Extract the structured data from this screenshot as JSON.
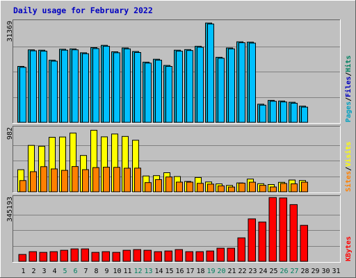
{
  "chart_data": [
    {
      "type": "bar",
      "title": "Daily usage for February 2022",
      "categories": [
        "1",
        "2",
        "3",
        "4",
        "5",
        "6",
        "7",
        "8",
        "9",
        "10",
        "11",
        "12",
        "13",
        "14",
        "15",
        "16",
        "17",
        "18",
        "19",
        "20",
        "21",
        "22",
        "23",
        "24",
        "25",
        "26",
        "27",
        "28",
        "29",
        "30",
        "31"
      ],
      "weekend_days": [
        "5",
        "6",
        "12",
        "13",
        "19",
        "20",
        "26",
        "27"
      ],
      "ymax_label": "31369",
      "ylim": [
        0,
        31369
      ],
      "legend": [
        {
          "label": "Pages",
          "color": "#00a0c0"
        },
        {
          "label": "Files",
          "color": "#0000c0"
        },
        {
          "label": "Hits",
          "color": "#008060"
        }
      ],
      "series": [
        {
          "name": "Hits",
          "color": "#00a0c0",
          "values": [
            17300,
            22400,
            22300,
            19200,
            22600,
            22700,
            21500,
            23100,
            23800,
            21800,
            23000,
            21900,
            18600,
            19500,
            17600,
            22300,
            22500,
            23500,
            30700,
            20100,
            23000,
            24900,
            24800,
            5600,
            6800,
            6600,
            6200,
            5000,
            0,
            0,
            0
          ]
        },
        {
          "name": "Files",
          "color": "#00c0ff",
          "values": [
            17000,
            22100,
            22000,
            18900,
            22300,
            22400,
            21200,
            22800,
            23500,
            21500,
            22700,
            21600,
            18300,
            19200,
            17300,
            22000,
            22200,
            23200,
            30400,
            19800,
            22700,
            24600,
            24500,
            5300,
            6500,
            6300,
            5900,
            4700,
            0,
            0,
            0
          ]
        }
      ]
    },
    {
      "type": "bar",
      "categories": [
        "1",
        "2",
        "3",
        "4",
        "5",
        "6",
        "7",
        "8",
        "9",
        "10",
        "11",
        "12",
        "13",
        "14",
        "15",
        "16",
        "17",
        "18",
        "19",
        "20",
        "21",
        "22",
        "23",
        "24",
        "25",
        "26",
        "27",
        "28",
        "29",
        "30",
        "31"
      ],
      "ymax_label": "982",
      "ylim": [
        0,
        982
      ],
      "legend": [
        {
          "label": "Sites",
          "color": "#ff8000"
        },
        {
          "label": "Visits",
          "color": "#ffff00"
        }
      ],
      "series": [
        {
          "name": "Visits",
          "color": "#ffff00",
          "values": [
            336,
            705,
            693,
            829,
            833,
            893,
            552,
            936,
            835,
            879,
            842,
            784,
            241,
            246,
            290,
            232,
            157,
            217,
            150,
            120,
            97,
            135,
            194,
            124,
            111,
            145,
            180,
            172,
            0,
            0,
            0
          ]
        },
        {
          "name": "Sites",
          "color": "#ff8000",
          "values": [
            171,
            306,
            382,
            348,
            326,
            384,
            337,
            368,
            374,
            372,
            359,
            360,
            140,
            186,
            226,
            148,
            148,
            129,
            117,
            91,
            73,
            132,
            147,
            99,
            74,
            127,
            121,
            147,
            0,
            0,
            0
          ]
        }
      ]
    },
    {
      "type": "bar",
      "categories": [
        "1",
        "2",
        "3",
        "4",
        "5",
        "6",
        "7",
        "8",
        "9",
        "10",
        "11",
        "12",
        "13",
        "14",
        "15",
        "16",
        "17",
        "18",
        "19",
        "20",
        "21",
        "22",
        "23",
        "24",
        "25",
        "26",
        "27",
        "28",
        "29",
        "30",
        "31"
      ],
      "ymax_label": "345193",
      "ylim": [
        0,
        345193
      ],
      "legend": [
        {
          "label": "KBytes",
          "color": "#ff0000"
        }
      ],
      "series": [
        {
          "name": "KBytes",
          "color": "#ff0000",
          "values": [
            36800,
            51500,
            47800,
            51500,
            59000,
            66400,
            66400,
            47800,
            51500,
            47800,
            59000,
            62700,
            59000,
            51500,
            55200,
            62700,
            51500,
            51500,
            55200,
            70100,
            70100,
            125500,
            226700,
            210100,
            340800,
            338400,
            303000,
            192200,
            0,
            0,
            0
          ]
        }
      ]
    }
  ]
}
